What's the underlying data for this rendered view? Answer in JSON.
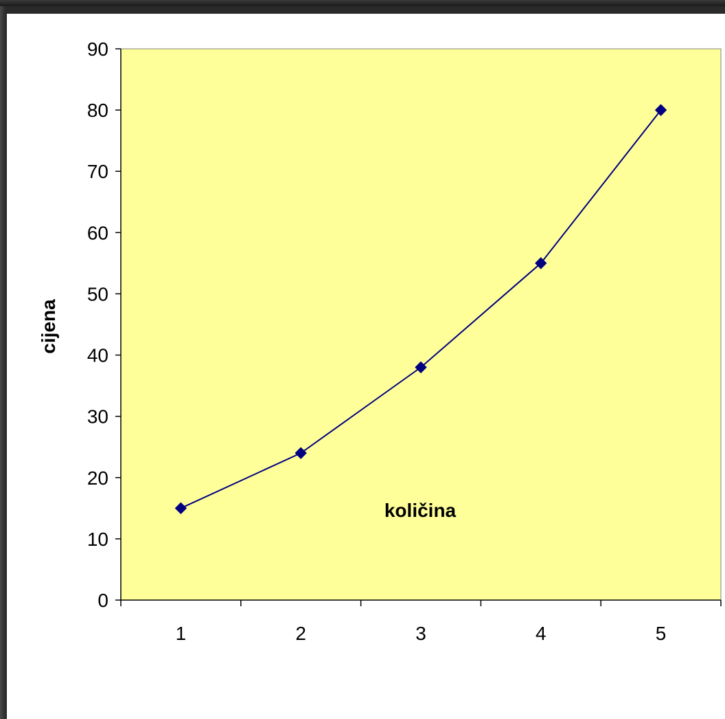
{
  "chart_data": {
    "type": "line",
    "title": "",
    "xlabel": "količina",
    "ylabel": "cijena",
    "categories": [
      "1",
      "2",
      "3",
      "4",
      "5"
    ],
    "series": [
      {
        "values": [
          15,
          24,
          38,
          55,
          80
        ]
      }
    ],
    "ylim": [
      0,
      90
    ],
    "yticks": [
      "0",
      "10",
      "20",
      "30",
      "40",
      "50",
      "60",
      "70",
      "80",
      "90"
    ],
    "grid": false,
    "legend": "none",
    "colors": {
      "plot_background": "#ffff99",
      "line": "#000080",
      "marker": "#000080",
      "axis": "#000000",
      "page_background": "#ffffff"
    },
    "marker": "diamond"
  }
}
